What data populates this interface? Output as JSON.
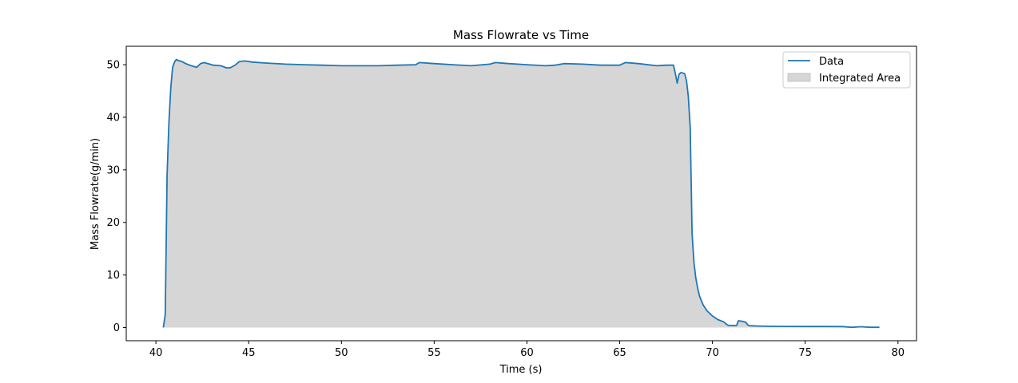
{
  "chart_data": {
    "type": "area",
    "title": "Mass Flowrate vs Time",
    "xlabel": "Time (s)",
    "ylabel": "Mass Flowrate(g/min)",
    "xlim": [
      38.4,
      81.0
    ],
    "ylim": [
      -2.5,
      53.5
    ],
    "xticks": [
      40,
      45,
      50,
      55,
      60,
      65,
      70,
      75,
      80
    ],
    "yticks": [
      0,
      10,
      20,
      30,
      40,
      50
    ],
    "grid": false,
    "legend_position": "top-right",
    "series": [
      {
        "name": "Data",
        "color": "#1f77b4",
        "x": [
          40.4,
          40.5,
          40.6,
          40.7,
          40.8,
          40.9,
          41.0,
          41.1,
          41.2,
          41.4,
          41.6,
          41.9,
          42.2,
          42.4,
          42.6,
          42.8,
          43.1,
          43.5,
          43.8,
          44.0,
          44.3,
          44.5,
          44.8,
          45.2,
          46.0,
          47.0,
          48.0,
          49.0,
          50.0,
          51.0,
          52.0,
          53.0,
          54.0,
          54.2,
          55.0,
          56.0,
          57.0,
          58.0,
          58.3,
          59.0,
          60.0,
          61.0,
          61.5,
          62.0,
          63.0,
          64.0,
          65.0,
          65.3,
          66.0,
          67.0,
          67.5,
          67.9,
          68.0,
          68.1,
          68.2,
          68.3,
          68.5,
          68.6,
          68.7,
          68.8,
          68.9,
          69.0,
          69.1,
          69.2,
          69.3,
          69.5,
          69.7,
          70.0,
          70.3,
          70.6,
          70.8,
          70.9,
          71.3,
          71.4,
          71.6,
          71.8,
          71.9,
          72.0,
          72.5,
          73.0,
          74.0,
          75.0,
          76.0,
          77.0,
          77.5,
          78.0,
          78.5,
          79.0
        ],
        "y": [
          0.0,
          2.5,
          29.0,
          39.0,
          45.5,
          49.5,
          50.5,
          51.0,
          50.8,
          50.6,
          50.2,
          49.8,
          49.5,
          50.2,
          50.4,
          50.2,
          49.9,
          49.8,
          49.4,
          49.4,
          50.0,
          50.6,
          50.7,
          50.5,
          50.3,
          50.1,
          50.0,
          49.9,
          49.8,
          49.8,
          49.8,
          49.9,
          50.0,
          50.4,
          50.2,
          50.0,
          49.8,
          50.1,
          50.4,
          50.2,
          50.0,
          49.8,
          49.9,
          50.2,
          50.1,
          49.9,
          49.9,
          50.4,
          50.2,
          49.8,
          49.9,
          49.9,
          48.3,
          46.5,
          48.2,
          48.5,
          48.3,
          47.0,
          44.0,
          38.0,
          18.0,
          12.5,
          9.5,
          7.5,
          6.0,
          4.3,
          3.2,
          2.2,
          1.5,
          1.1,
          0.5,
          0.4,
          0.4,
          1.3,
          1.2,
          1.0,
          0.5,
          0.35,
          0.3,
          0.25,
          0.22,
          0.2,
          0.2,
          0.18,
          0.05,
          0.15,
          0.05,
          0.05
        ]
      }
    ],
    "legend": [
      {
        "label": "Data",
        "kind": "line",
        "color": "#1f77b4"
      },
      {
        "label": "Integrated Area",
        "kind": "area",
        "color": "#d6d6d6"
      }
    ],
    "area_fill_color": "#d6d6d6"
  }
}
